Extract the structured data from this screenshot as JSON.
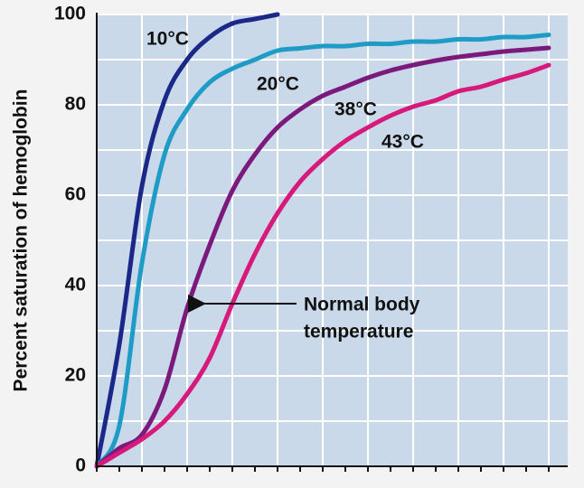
{
  "chart_data": {
    "type": "line",
    "y_label": "Percent saturation of hemoglobin",
    "categories": [
      null,
      null,
      null,
      null,
      null,
      null,
      null,
      null,
      null,
      null,
      null,
      null,
      null,
      null,
      null,
      null,
      null,
      null,
      null,
      null,
      null
    ],
    "series": [
      {
        "name": "10°C",
        "color": "#1c2888",
        "values": [
          0,
          27,
          62,
          81,
          90,
          95,
          98,
          99,
          100,
          null,
          null,
          null,
          null,
          null,
          null,
          null,
          null,
          null,
          null,
          null,
          null
        ]
      },
      {
        "name": "20°C",
        "color": "#1e9cc6",
        "values": [
          0,
          9,
          45,
          69,
          79,
          85,
          88,
          90,
          92,
          92.5,
          93,
          93,
          93.5,
          93.5,
          94,
          94,
          94.5,
          94.5,
          95,
          95,
          95.5
        ]
      },
      {
        "name": "38°C",
        "color": "#7b1a7c",
        "values": [
          0,
          4,
          7,
          17,
          35,
          49,
          61,
          69,
          75,
          79,
          82,
          84,
          86,
          87.6,
          88.8,
          89.8,
          90.6,
          91.2,
          91.8,
          92.2,
          92.6
        ]
      },
      {
        "name": "43°C",
        "color": "#d8197c",
        "values": [
          0,
          3,
          6,
          10,
          16,
          24,
          36,
          47,
          56,
          63,
          68,
          72,
          75,
          77.6,
          79.6,
          81,
          83,
          84,
          85.6,
          87,
          88.8
        ]
      }
    ],
    "annotation": [
      "Normal body",
      "temperature"
    ],
    "ylim": [
      0,
      100
    ],
    "yticks": [
      0,
      20,
      40,
      60,
      80,
      100
    ],
    "grid": true
  }
}
